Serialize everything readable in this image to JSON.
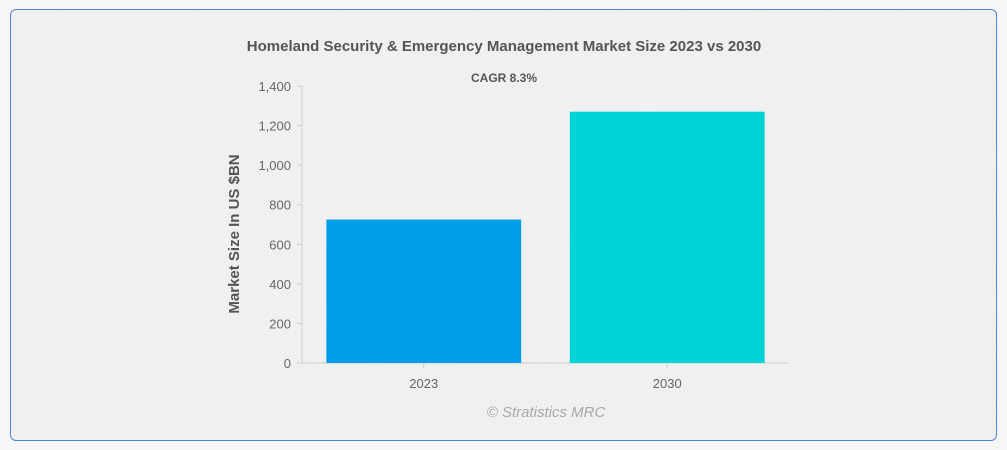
{
  "chart_data": {
    "type": "bar",
    "title": "Homeland Security & Emergency Management Market Size 2023 vs 2030",
    "subtitle": "CAGR 8.3%",
    "xlabel": "",
    "ylabel": "Market Size In US $BN",
    "categories": [
      "2023",
      "2030"
    ],
    "values": [
      725,
      1270
    ],
    "ylim": [
      0,
      1400
    ],
    "yticks": [
      0,
      200,
      400,
      600,
      800,
      1000,
      1200,
      1400
    ],
    "ytick_labels": [
      "0",
      "200",
      "400",
      "600",
      "800",
      "1,000",
      "1,200",
      "1,400"
    ],
    "colors": [
      "#019fe9",
      "#00d4d6"
    ],
    "grid": false,
    "legend": "none",
    "watermark": "© Stratistics MRC"
  }
}
